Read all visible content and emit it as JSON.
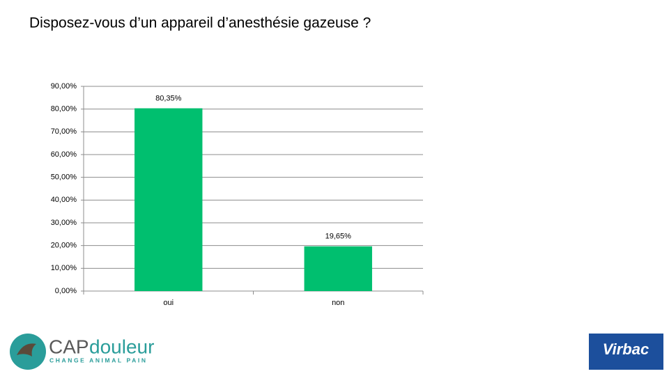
{
  "chart_data": {
    "type": "bar",
    "title": "Disposez-vous d’un appareil d’anesthésie gazeuse ?",
    "categories": [
      "oui",
      "non"
    ],
    "values": [
      80.35,
      19.65
    ],
    "value_labels": [
      "80,35%",
      "19,65%"
    ],
    "color": "#00bf6f",
    "ylim": [
      0,
      90
    ],
    "yticks": [
      {
        "value": 0,
        "label": "0,00%"
      },
      {
        "value": 10,
        "label": "10,00%"
      },
      {
        "value": 20,
        "label": "20,00%"
      },
      {
        "value": 30,
        "label": "30,00%"
      },
      {
        "value": 40,
        "label": "40,00%"
      },
      {
        "value": 50,
        "label": "50,00%"
      },
      {
        "value": 60,
        "label": "60,00%"
      },
      {
        "value": 70,
        "label": "70,00%"
      },
      {
        "value": 80,
        "label": "80,00%"
      },
      {
        "value": 90,
        "label": "90,00%"
      }
    ],
    "grid": true
  },
  "footer": {
    "left_logo": {
      "prefix": "CAP",
      "name": "douleur",
      "tagline": "CHANGE ANIMAL PAIN"
    },
    "right_logo": "Virbac"
  }
}
